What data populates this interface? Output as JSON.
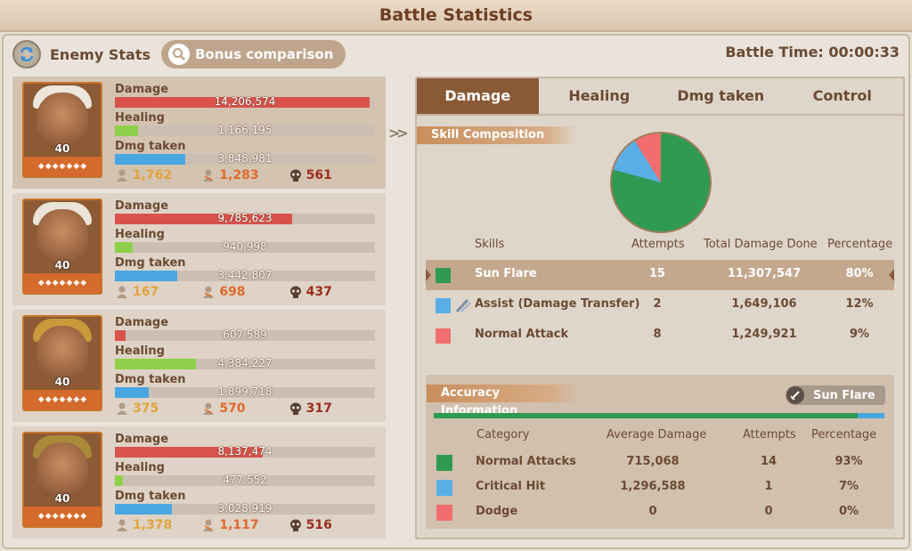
{
  "window": {
    "title": "Battle Statistics"
  },
  "header": {
    "enemy_stats_label": "Enemy Stats",
    "bonus_button_label": "Bonus comparison",
    "battle_time": "Battle Time: 00:00:33"
  },
  "heroes": [
    {
      "level": "40",
      "damage_label": "Damage",
      "damage": "14,206,574",
      "damage_fraction": 0.98,
      "healing_label": "Healing",
      "healing": "1,166,195",
      "healing_fraction": 0.09,
      "taken_label": "Dmg taken",
      "taken": "3,848,981",
      "taken_fraction": 0.27,
      "count1": "1,762",
      "count2": "1,283",
      "count3": "561"
    },
    {
      "level": "40",
      "damage_label": "Damage",
      "damage": "9,785,623",
      "damage_fraction": 0.68,
      "healing_label": "Healing",
      "healing": "940,998",
      "healing_fraction": 0.07,
      "taken_label": "Dmg taken",
      "taken": "3,442,807",
      "taken_fraction": 0.24,
      "count1": "167",
      "count2": "698",
      "count3": "437"
    },
    {
      "level": "40",
      "damage_label": "Damage",
      "damage": "607,589",
      "damage_fraction": 0.04,
      "healing_label": "Healing",
      "healing": "4,384,227",
      "healing_fraction": 0.31,
      "taken_label": "Dmg taken",
      "taken": "1,899,718",
      "taken_fraction": 0.13,
      "count1": "375",
      "count2": "570",
      "count3": "317"
    },
    {
      "level": "40",
      "damage_label": "Damage",
      "damage": "8,137,474",
      "damage_fraction": 0.57,
      "healing_label": "Healing",
      "healing": "477,552",
      "healing_fraction": 0.03,
      "taken_label": "Dmg taken",
      "taken": "3,028,919",
      "taken_fraction": 0.22,
      "count1": "1,378",
      "count2": "1,117",
      "count3": "516"
    }
  ],
  "tabs": [
    "Damage",
    "Healing",
    "Dmg taken",
    "Control"
  ],
  "skill_composition": {
    "title": "Skill Composition",
    "headers": {
      "skills": "Skills",
      "attempts": "Attempts",
      "total": "Total Damage Done",
      "percentage": "Percentage"
    },
    "rows": [
      {
        "name": "Sun Flare",
        "attempts": "15",
        "total": "11,307,547",
        "percentage": "80%",
        "color": "#2e9a52"
      },
      {
        "name": "Assist (Damage Transfer)",
        "attempts": "2",
        "total": "1,649,106",
        "percentage": "12%",
        "color": "#5aaee6"
      },
      {
        "name": "Normal Attack",
        "attempts": "8",
        "total": "1,249,921",
        "percentage": "9%",
        "color": "#f26d6d"
      }
    ]
  },
  "accuracy": {
    "title": "Accuracy Information",
    "skill_tag": "Sun Flare",
    "bar_fraction": 0.94,
    "headers": {
      "category": "Category",
      "avg": "Average Damage",
      "attempts": "Attempts",
      "percentage": "Percentage"
    },
    "rows": [
      {
        "name": "Normal Attacks",
        "avg": "715,068",
        "attempts": "14",
        "percentage": "93%",
        "color": "#2e9a52"
      },
      {
        "name": "Critical Hit",
        "avg": "1,296,588",
        "attempts": "1",
        "percentage": "7%",
        "color": "#5aaee6"
      },
      {
        "name": "Dodge",
        "avg": "0",
        "attempts": "0",
        "percentage": "0%",
        "color": "#f26d6d"
      }
    ]
  },
  "chart_data": {
    "type": "pie",
    "categories": [
      "Sun Flare",
      "Assist (Damage Transfer)",
      "Normal Attack"
    ],
    "values": [
      80,
      12,
      9
    ],
    "colors": [
      "#2e9a52",
      "#5aaee6",
      "#f26d6d"
    ]
  }
}
